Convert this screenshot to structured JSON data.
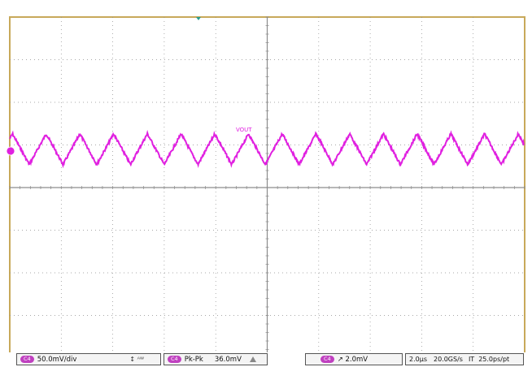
{
  "colors": {
    "frame": "#c8a95a",
    "grid": "#8c8c8c",
    "trace": "#e020e0",
    "channel_badge": "#c040c0"
  },
  "chart_data": {
    "type": "line",
    "title": "",
    "xlabel": "",
    "ylabel": "",
    "grid": true,
    "x_divisions": 10,
    "y_divisions": 8,
    "x_unit_per_div": "2.0µs",
    "y_unit_per_div": "50.0mV",
    "xlim_us": [
      0,
      20
    ],
    "ylim_div": [
      -4,
      4
    ],
    "series": [
      {
        "name": "VOUT",
        "ripple_period_us": 1.31,
        "center_offset_div": 0.9,
        "pk_pk_mV": 36.0,
        "noise_div": 0.06
      }
    ]
  },
  "statusbar": {
    "ch_scale": {
      "badge": "C4",
      "text": "50.0mV/div",
      "icons": "↕ ᴬᵂ"
    },
    "measurement": {
      "badge": "C4",
      "label": "Pk-Pk",
      "value": "36.0mV",
      "icon": "warning-triangle-icon"
    },
    "trigger": {
      "badge": "C4",
      "text": "↗ 2.0mV"
    },
    "timebase": {
      "time_div": "2.0µs",
      "sample_rate": "20.0GS/s",
      "mode": "IT",
      "resolution": "25.0ps/pt"
    }
  }
}
